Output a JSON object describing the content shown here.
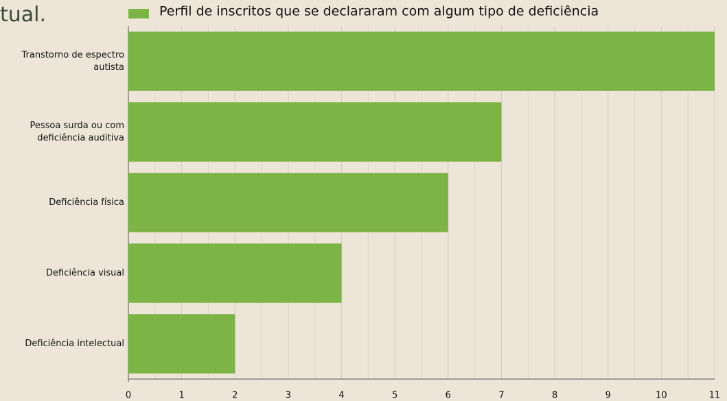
{
  "caption": "tual.",
  "chart_data": {
    "type": "barh",
    "categories": [
      "Transtorno de espectro autista",
      "Pessoa surda ou com deficiência auditiva",
      "Deficiência física",
      "Deficiência visual",
      "Deficiência intelectual"
    ],
    "series": [
      {
        "name": "Perfil de inscritos que se declararam com algum tipo de deficiência",
        "color": "#7db446",
        "values": [
          11,
          7,
          6,
          4,
          2
        ]
      }
    ],
    "xlim": [
      0,
      11
    ],
    "xticks": [
      0,
      1,
      2,
      3,
      4,
      5,
      6,
      7,
      8,
      9,
      10,
      11
    ],
    "minor_xticks": [
      0.5,
      1.5,
      2.5,
      3.5,
      4.5,
      5.5,
      6.5,
      7.5,
      8.5,
      9.5,
      10.5
    ],
    "grid": true,
    "legend": "top"
  }
}
